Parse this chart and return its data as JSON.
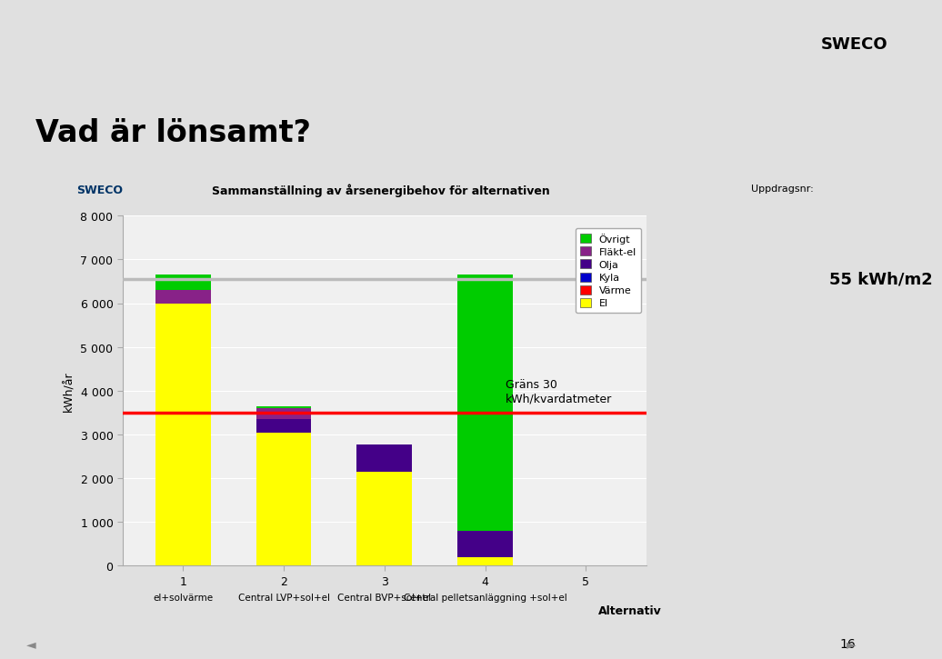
{
  "title": "Sammanställning av årsenergibehov för alternativen",
  "uppdragsnr_label": "Uppdragsnr:",
  "ylabel": "kWh/år",
  "xlabel_label": "Alternativ",
  "slide_title": "Vad är lönsamt?",
  "page_number": "16",
  "ylim": [
    0,
    8000
  ],
  "yticks": [
    0,
    1000,
    2000,
    3000,
    4000,
    5000,
    6000,
    7000,
    8000
  ],
  "line_55_value": 6550,
  "line_55_label": "55 kWh/m2",
  "line_30_value": 3500,
  "line_30_label": "Gräns 30\nkWh/kvardatmeter",
  "cat_labels_top": [
    "1",
    "2",
    "3",
    "4",
    "5"
  ],
  "cat_labels_bot": [
    "el+solvärme",
    "Central LVP+sol+el",
    "Central BVP+sol+el",
    "Central pelletsanläggning +sol+el",
    ""
  ],
  "segments": {
    "El": [
      6000,
      3050,
      2150,
      200,
      0
    ],
    "Värme": [
      0,
      0,
      0,
      0,
      0
    ],
    "Kyla": [
      0,
      0,
      0,
      0,
      0
    ],
    "Olja": [
      0,
      300,
      620,
      600,
      0
    ],
    "Fläkt-el": [
      300,
      250,
      0,
      0,
      0
    ],
    "Övrigt": [
      350,
      50,
      0,
      5850,
      0
    ]
  },
  "colors": {
    "El": "#FFFF00",
    "Värme": "#FF0000",
    "Kyla": "#0000CC",
    "Olja": "#440088",
    "Fläkt-el": "#882288",
    "Övrigt": "#00CC00"
  },
  "legend_order": [
    "Övrigt",
    "Fläkt-el",
    "Olja",
    "Kyla",
    "Värme",
    "El"
  ],
  "top_bg": "#FFFFFF",
  "slide_bg": "#E0E0E0",
  "panel_bg": "#FFFFFF",
  "chart_bg": "#F0F0F0",
  "bar_width": 0.55,
  "line_30_color": "#FF0000",
  "line_55_color": "#BBBBBB"
}
